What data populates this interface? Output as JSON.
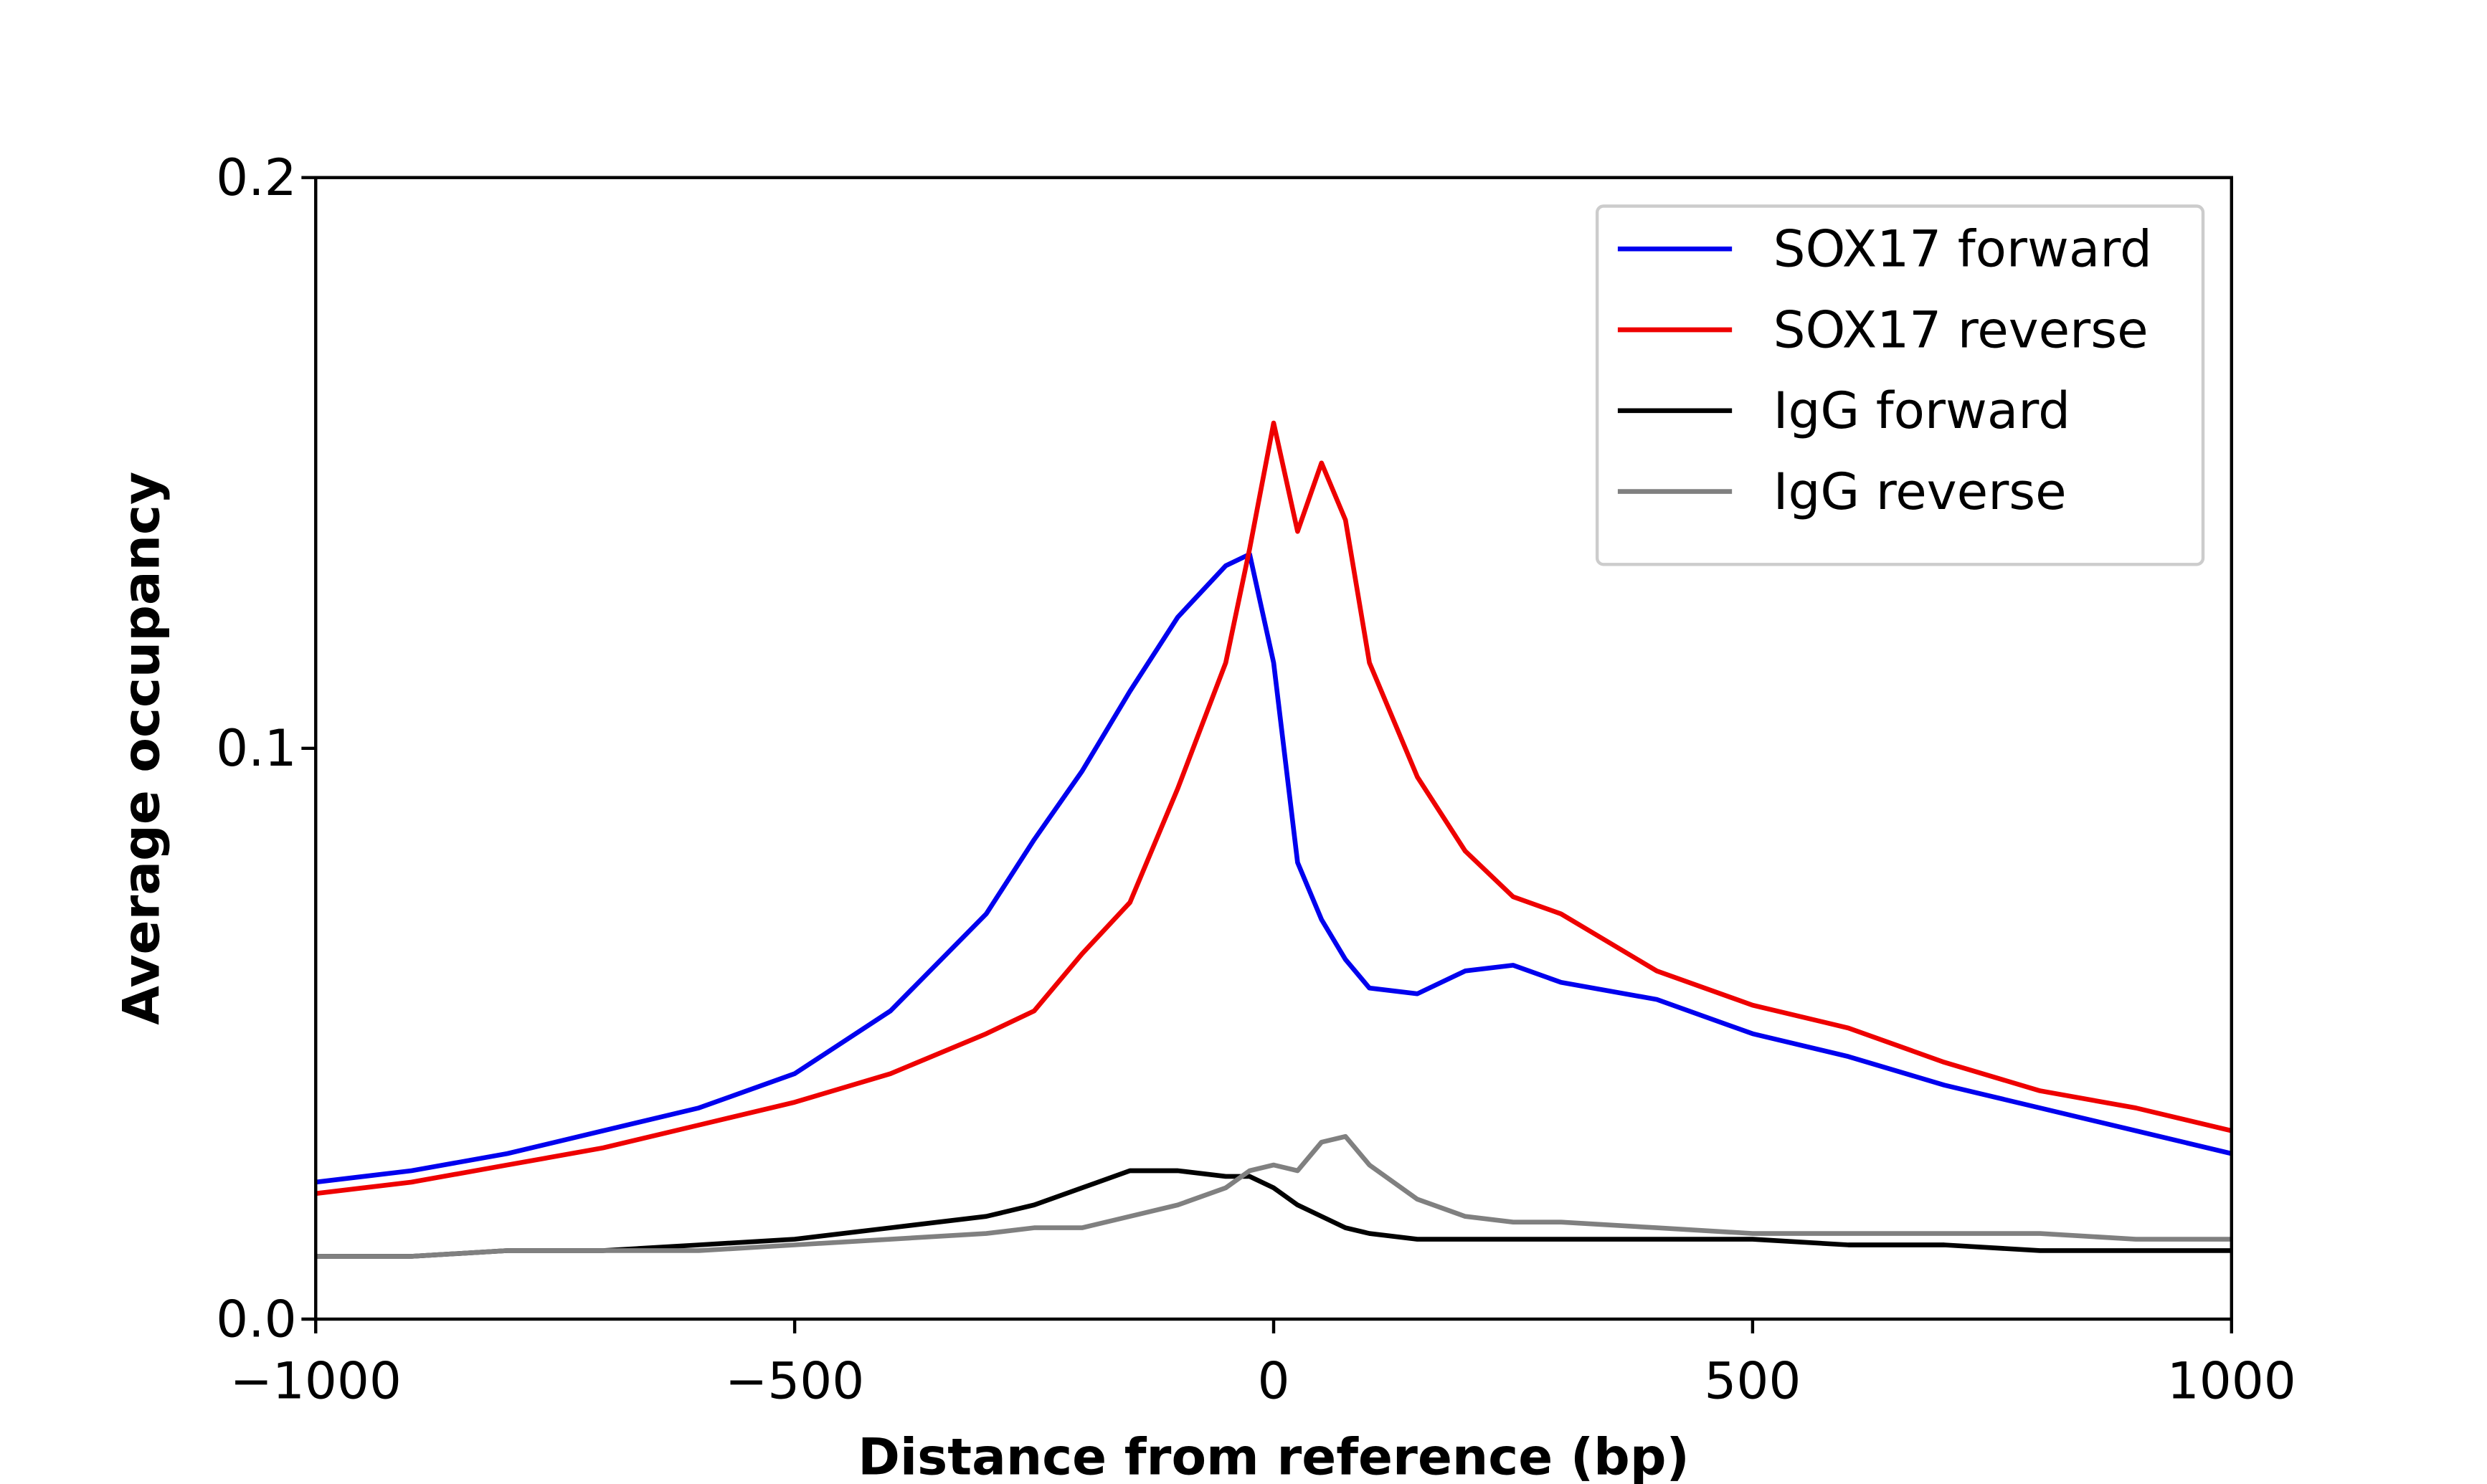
{
  "chart_data": {
    "type": "line",
    "xlabel": "Distance from reference (bp)",
    "ylabel": "Average occupancy",
    "x": [
      -1000,
      -900,
      -800,
      -700,
      -600,
      -500,
      -400,
      -300,
      -250,
      -200,
      -150,
      -100,
      -50,
      -25,
      0,
      25,
      50,
      75,
      100,
      150,
      200,
      250,
      300,
      400,
      500,
      600,
      700,
      800,
      900,
      1000
    ],
    "series": [
      {
        "name": "SOX17 forward",
        "color": "#0000ee",
        "values": [
          0.024,
          0.026,
          0.029,
          0.033,
          0.037,
          0.043,
          0.054,
          0.071,
          0.084,
          0.096,
          0.11,
          0.123,
          0.132,
          0.134,
          0.115,
          0.08,
          0.07,
          0.063,
          0.058,
          0.057,
          0.061,
          0.062,
          0.059,
          0.056,
          0.05,
          0.046,
          0.041,
          0.037,
          0.033,
          0.029
        ]
      },
      {
        "name": "SOX17 reverse",
        "color": "#ee0000",
        "values": [
          0.022,
          0.024,
          0.027,
          0.03,
          0.034,
          0.038,
          0.043,
          0.05,
          0.054,
          0.064,
          0.073,
          0.093,
          0.115,
          0.135,
          0.157,
          0.138,
          0.15,
          0.14,
          0.115,
          0.095,
          0.082,
          0.074,
          0.071,
          0.061,
          0.055,
          0.051,
          0.045,
          0.04,
          0.037,
          0.033
        ]
      },
      {
        "name": "IgG forward",
        "color": "#000000",
        "values": [
          0.011,
          0.011,
          0.012,
          0.012,
          0.013,
          0.014,
          0.016,
          0.018,
          0.02,
          0.023,
          0.026,
          0.026,
          0.025,
          0.025,
          0.023,
          0.02,
          0.018,
          0.016,
          0.015,
          0.014,
          0.014,
          0.014,
          0.014,
          0.014,
          0.014,
          0.013,
          0.013,
          0.012,
          0.012,
          0.012
        ]
      },
      {
        "name": "IgG reverse",
        "color": "#808080",
        "values": [
          0.011,
          0.011,
          0.012,
          0.012,
          0.012,
          0.013,
          0.014,
          0.015,
          0.016,
          0.016,
          0.018,
          0.02,
          0.023,
          0.026,
          0.027,
          0.026,
          0.031,
          0.032,
          0.027,
          0.021,
          0.018,
          0.017,
          0.017,
          0.016,
          0.015,
          0.015,
          0.015,
          0.015,
          0.014,
          0.014
        ]
      }
    ],
    "xlim": [
      -1000,
      1000
    ],
    "xticks": [
      {
        "value": -1000,
        "label": "−1000"
      },
      {
        "value": -500,
        "label": "−500"
      },
      0,
      500,
      1000
    ],
    "ylim": [
      0,
      0.2
    ],
    "yticks": [
      {
        "value": 0,
        "label": "0.0"
      },
      0.1,
      0.2
    ],
    "legend": "upper right"
  }
}
